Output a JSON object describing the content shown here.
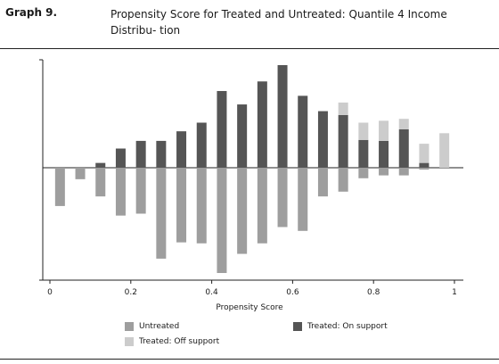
{
  "header": {
    "graph_number": "Graph 9.",
    "title": "Propensity Score for Treated and Untreated: Quantile 4 Income Distribu- tion"
  },
  "colors": {
    "untreated": "#9e9e9e",
    "treated_on": "#555555",
    "treated_off": "#cccccc",
    "axis": "#222222"
  },
  "chart_data": {
    "type": "bar",
    "title": "Propensity Score for Treated and Untreated: Quantile 4 Income Distribution",
    "xlabel": "Propensity Score",
    "ylabel": "",
    "xlim": [
      0,
      1
    ],
    "ylim": [
      -1.1,
      1.07
    ],
    "x_ticks": [
      "0",
      "0.2",
      "0.4",
      "0.6",
      "0.8",
      "1"
    ],
    "x_tick_values": [
      0,
      0.2,
      0.4,
      0.6,
      0.8,
      1
    ],
    "legend_position": "bottom",
    "x": [
      0.025,
      0.075,
      0.125,
      0.175,
      0.225,
      0.275,
      0.325,
      0.375,
      0.425,
      0.475,
      0.525,
      0.575,
      0.625,
      0.675,
      0.725,
      0.775,
      0.825,
      0.875,
      0.925,
      0.975
    ],
    "series": [
      {
        "name": "Untreated",
        "values": [
          -0.4,
          -0.12,
          -0.3,
          -0.5,
          -0.48,
          -0.95,
          -0.78,
          -0.79,
          -1.1,
          -0.9,
          -0.79,
          -0.62,
          -0.66,
          -0.3,
          -0.25,
          -0.11,
          -0.08,
          -0.08,
          -0.02,
          0
        ]
      },
      {
        "name": "Treated: On support",
        "values": [
          0,
          0,
          0.05,
          0.2,
          0.28,
          0.28,
          0.38,
          0.47,
          0.8,
          0.66,
          0.9,
          1.07,
          0.75,
          0.59,
          0.55,
          0.29,
          0.28,
          0.4,
          0.05,
          0
        ]
      },
      {
        "name": "Treated: Off support",
        "values": [
          0,
          0,
          0,
          0,
          0,
          0,
          0,
          0,
          0,
          0,
          0,
          0,
          0,
          0,
          0.13,
          0.18,
          0.21,
          0.11,
          0.2,
          0.36
        ]
      }
    ]
  },
  "legend": {
    "untreated": "Untreated",
    "treated_on": "Treated: On support",
    "treated_off": "Treated: Off support"
  }
}
